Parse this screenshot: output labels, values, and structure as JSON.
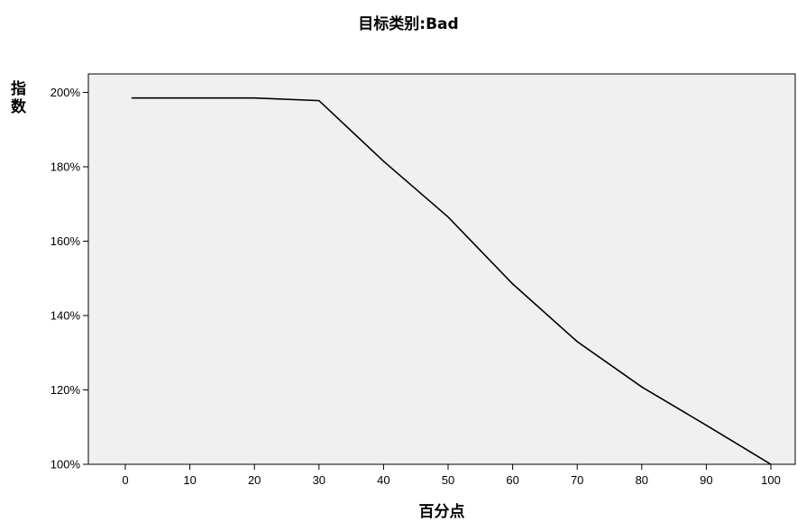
{
  "chart_data": {
    "type": "line",
    "title": "目标类别:Bad",
    "xlabel": "百分点",
    "ylabel": "指数",
    "ylabel_lines": [
      "指",
      "数"
    ],
    "xlim": [
      -5,
      104
    ],
    "ylim": [
      100,
      205
    ],
    "x_ticks": [
      0,
      10,
      20,
      30,
      40,
      50,
      60,
      70,
      80,
      90,
      100
    ],
    "x_tick_labels": [
      "0",
      "10",
      "20",
      "30",
      "40",
      "50",
      "60",
      "70",
      "80",
      "90",
      "100"
    ],
    "y_ticks": [
      100,
      120,
      140,
      160,
      180,
      200
    ],
    "y_tick_labels": [
      "100%",
      "120%",
      "140%",
      "160%",
      "180%",
      "200%"
    ],
    "series": [
      {
        "x": [
          1,
          10,
          20,
          30,
          40,
          50,
          60,
          70,
          80,
          90,
          100
        ],
        "y": [
          198.5,
          198.5,
          198.5,
          197.8,
          181.5,
          166.5,
          148.5,
          133,
          120.8,
          110.5,
          100
        ]
      }
    ],
    "colors": {
      "plot_background": "#f0f0f0",
      "line": "#000000"
    },
    "grid": false,
    "legend": "none"
  }
}
